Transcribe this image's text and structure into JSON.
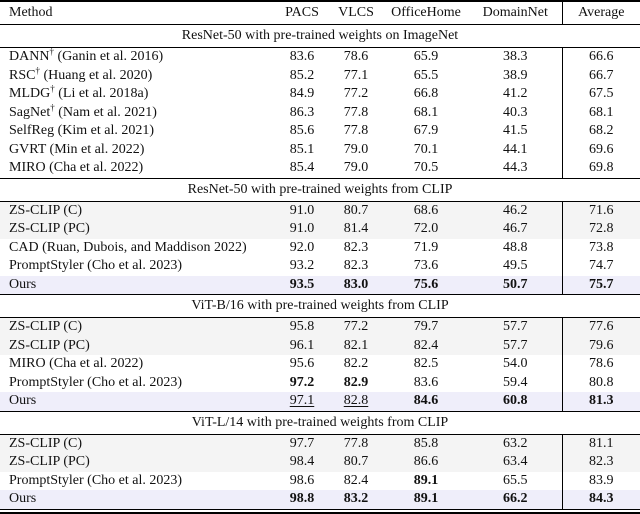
{
  "paper_table": {
    "columns": [
      "Method",
      "PACS",
      "VLCS",
      "OfficeHome",
      "DomainNet",
      "Average"
    ],
    "highlight_color": "#efeefa",
    "shade_color": "#f4f4f4",
    "sections": [
      {
        "title": "ResNet-50 with pre-trained weights on ImageNet",
        "rows": [
          {
            "method": "DANN",
            "dagger": "†",
            "cite": "(Ganin et al. 2016)",
            "values": [
              "83.6",
              "78.6",
              "65.9",
              "38.3",
              "66.6"
            ]
          },
          {
            "method": "RSC",
            "dagger": "†",
            "cite": "(Huang et al. 2020)",
            "values": [
              "85.2",
              "77.1",
              "65.5",
              "38.9",
              "66.7"
            ]
          },
          {
            "method": "MLDG",
            "dagger": "†",
            "cite": "(Li et al. 2018a)",
            "values": [
              "84.9",
              "77.2",
              "66.8",
              "41.2",
              "67.5"
            ]
          },
          {
            "method": "SagNet",
            "dagger": "†",
            "cite": "(Nam et al. 2021)",
            "values": [
              "86.3",
              "77.8",
              "68.1",
              "40.3",
              "68.1"
            ]
          },
          {
            "method": "SelfReg",
            "dagger": "",
            "cite": "(Kim et al. 2021)",
            "values": [
              "85.6",
              "77.8",
              "67.9",
              "41.5",
              "68.2"
            ]
          },
          {
            "method": "GVRT",
            "dagger": "",
            "cite": "(Min et al. 2022)",
            "values": [
              "85.1",
              "79.0",
              "70.1",
              "44.1",
              "69.6"
            ]
          },
          {
            "method": "MIRO",
            "dagger": "",
            "cite": "(Cha et al. 2022)",
            "values": [
              "85.4",
              "79.0",
              "70.5",
              "44.3",
              "69.8"
            ]
          }
        ]
      },
      {
        "title": "ResNet-50 with pre-trained weights from CLIP",
        "rows": [
          {
            "method": "ZS-CLIP (C)",
            "dagger": "",
            "cite": "",
            "values": [
              "91.0",
              "80.7",
              "68.6",
              "46.2",
              "71.6"
            ],
            "shaded": true
          },
          {
            "method": "ZS-CLIP (PC)",
            "dagger": "",
            "cite": "",
            "values": [
              "91.0",
              "81.4",
              "72.0",
              "46.7",
              "72.8"
            ],
            "shaded": true
          },
          {
            "method": "CAD",
            "dagger": "",
            "cite": "(Ruan, Dubois, and Maddison 2022)",
            "values": [
              "92.0",
              "82.3",
              "71.9",
              "48.8",
              "73.8"
            ]
          },
          {
            "method": "PromptStyler",
            "dagger": "",
            "cite": "(Cho et al. 2023)",
            "values": [
              "93.2",
              "82.3",
              "73.6",
              "49.5",
              "74.7"
            ]
          },
          {
            "method": "Ours",
            "dagger": "",
            "cite": "",
            "values": [
              "93.5",
              "83.0",
              "75.6",
              "50.7",
              "75.7"
            ],
            "styles": [
              "b",
              "b",
              "b",
              "b",
              "b"
            ],
            "highlight": true
          }
        ]
      },
      {
        "title": "ViT-B/16 with pre-trained weights from CLIP",
        "rows": [
          {
            "method": "ZS-CLIP (C)",
            "dagger": "",
            "cite": "",
            "values": [
              "95.8",
              "77.2",
              "79.7",
              "57.7",
              "77.6"
            ],
            "shaded": true
          },
          {
            "method": "ZS-CLIP (PC)",
            "dagger": "",
            "cite": "",
            "values": [
              "96.1",
              "82.1",
              "82.4",
              "57.7",
              "79.6"
            ],
            "shaded": true
          },
          {
            "method": "MIRO",
            "dagger": "",
            "cite": "(Cha et al. 2022)",
            "values": [
              "95.6",
              "82.2",
              "82.5",
              "54.0",
              "78.6"
            ]
          },
          {
            "method": "PromptStyler",
            "dagger": "",
            "cite": "(Cho et al. 2023)",
            "values": [
              "97.2",
              "82.9",
              "83.6",
              "59.4",
              "80.8"
            ],
            "styles": [
              "b",
              "b",
              "",
              "",
              ""
            ]
          },
          {
            "method": "Ours",
            "dagger": "",
            "cite": "",
            "values": [
              "97.1",
              "82.8",
              "84.6",
              "60.8",
              "81.3"
            ],
            "styles": [
              "u",
              "u",
              "b",
              "b",
              "b"
            ],
            "highlight": true
          }
        ]
      },
      {
        "title": "ViT-L/14 with pre-trained weights from CLIP",
        "rows": [
          {
            "method": "ZS-CLIP (C)",
            "dagger": "",
            "cite": "",
            "values": [
              "97.7",
              "77.8",
              "85.8",
              "63.2",
              "81.1"
            ],
            "shaded": true
          },
          {
            "method": "ZS-CLIP (PC)",
            "dagger": "",
            "cite": "",
            "values": [
              "98.4",
              "80.7",
              "86.6",
              "63.4",
              "82.3"
            ],
            "shaded": true
          },
          {
            "method": "PromptStyler",
            "dagger": "",
            "cite": "(Cho et al. 2023)",
            "values": [
              "98.6",
              "82.4",
              "89.1",
              "65.5",
              "83.9"
            ],
            "styles": [
              "",
              "",
              "b",
              "",
              ""
            ]
          },
          {
            "method": "Ours",
            "dagger": "",
            "cite": "",
            "values": [
              "98.8",
              "83.2",
              "89.1",
              "66.2",
              "84.3"
            ],
            "styles": [
              "b",
              "b",
              "b",
              "b",
              "b"
            ],
            "highlight": true
          }
        ]
      }
    ]
  }
}
